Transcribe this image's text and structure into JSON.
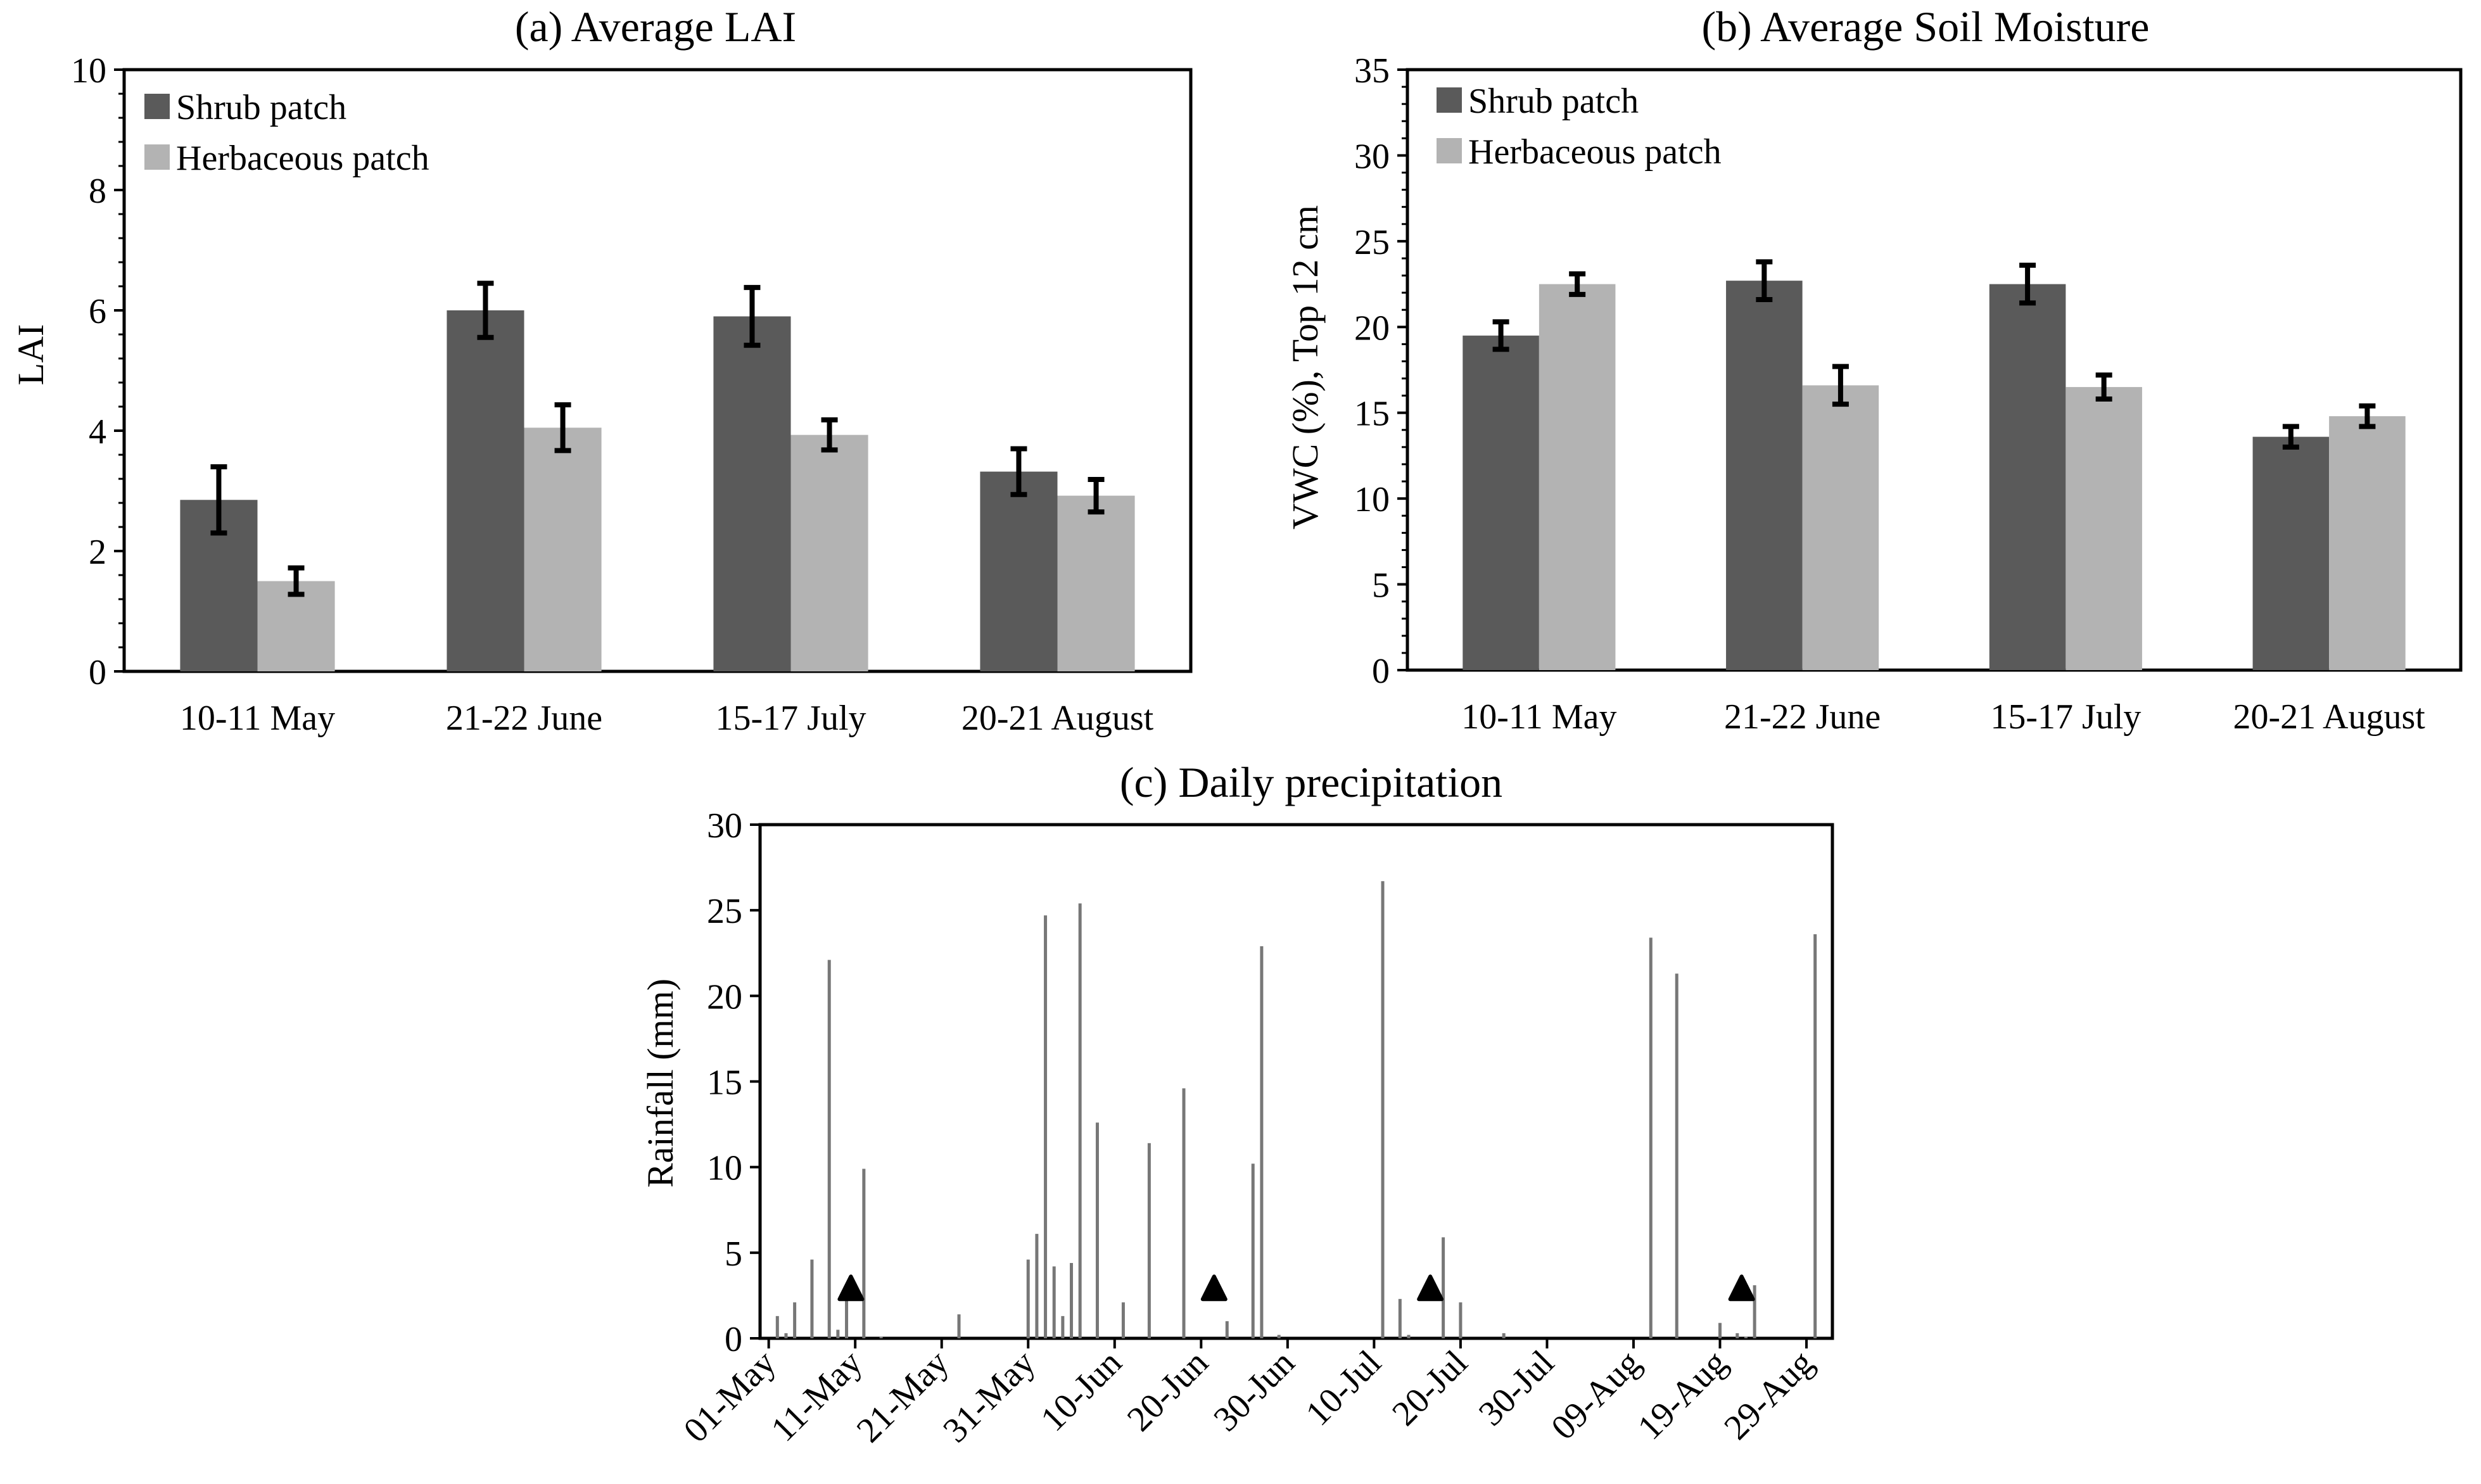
{
  "colors": {
    "shrub": "#5a5a5a",
    "herb": "#b3b3b3",
    "rain": "#777777",
    "marker": "#000000"
  },
  "chart_data": [
    {
      "id": "a",
      "type": "bar",
      "title": "(a) Average LAI",
      "xlabel": "",
      "ylabel": "LAI",
      "ylim": [
        0,
        10
      ],
      "yticks": [
        "0",
        "2",
        "4",
        "6",
        "8",
        "10"
      ],
      "categories": [
        "10-11 May",
        "21-22 June",
        "15-17 July",
        "20-21 August"
      ],
      "legend_position": "top-left",
      "series": [
        {
          "name": "Shrub patch",
          "values": [
            2.85,
            6.0,
            5.9,
            3.32
          ],
          "errors": [
            0.55,
            0.45,
            0.48,
            0.38
          ]
        },
        {
          "name": "Herbaceous patch",
          "values": [
            1.5,
            4.05,
            3.93,
            2.92
          ],
          "errors": [
            0.22,
            0.38,
            0.25,
            0.27
          ]
        }
      ]
    },
    {
      "id": "b",
      "type": "bar",
      "title": "(b) Average Soil Moisture",
      "xlabel": "",
      "ylabel": "VWC (%), Top 12 cm",
      "ylim": [
        0,
        35
      ],
      "yticks": [
        "0",
        "5",
        "10",
        "15",
        "20",
        "25",
        "30",
        "35"
      ],
      "categories": [
        "10-11 May",
        "21-22 June",
        "15-17 July",
        "20-21 August"
      ],
      "legend_position": "top-left",
      "series": [
        {
          "name": "Shrub patch",
          "values": [
            19.5,
            22.7,
            22.5,
            13.6
          ],
          "errors": [
            0.8,
            1.1,
            1.1,
            0.6
          ]
        },
        {
          "name": "Herbaceous patch",
          "values": [
            22.5,
            16.6,
            16.5,
            14.8
          ],
          "errors": [
            0.6,
            1.1,
            0.7,
            0.6
          ]
        }
      ]
    },
    {
      "id": "c",
      "type": "bar",
      "title": "(c) Daily precipitation",
      "xlabel": "",
      "ylabel": "Rainfall (mm)",
      "ylim": [
        0,
        30
      ],
      "yticks": [
        "0",
        "5",
        "10",
        "15",
        "20",
        "25",
        "30"
      ],
      "xlim_days": [
        -1,
        123
      ],
      "xticks": [
        "01-May",
        "11-May",
        "21-May",
        "31-May",
        "10-Jun",
        "20-Jun",
        "30-Jun",
        "10-Jul",
        "20-Jul",
        "30-Jul",
        "09-Aug",
        "19-Aug",
        "29-Aug"
      ],
      "day": [
        1,
        2,
        3,
        5,
        7,
        8,
        9,
        11,
        13,
        22,
        30,
        31,
        32,
        33,
        34,
        35,
        36,
        38,
        41,
        44,
        48,
        53,
        56,
        57,
        59,
        71,
        73,
        74,
        78,
        80,
        85,
        102,
        105,
        110,
        112,
        113,
        114,
        121
      ],
      "rainfall": [
        1.3,
        0.3,
        2.1,
        4.6,
        22.1,
        0.5,
        2.9,
        9.9,
        0.1,
        1.4,
        4.6,
        6.1,
        24.7,
        4.2,
        1.3,
        4.4,
        25.4,
        12.6,
        2.1,
        11.4,
        14.6,
        1.0,
        10.2,
        22.9,
        0.2,
        26.7,
        2.3,
        0.2,
        5.9,
        2.1,
        0.3,
        23.4,
        21.3,
        0.9,
        0.3,
        0.1,
        3.1,
        23.6
      ],
      "markers": {
        "symbol": "triangle",
        "day": [
          9.5,
          51.5,
          76.5,
          112.5
        ],
        "y": 2.8
      }
    }
  ]
}
